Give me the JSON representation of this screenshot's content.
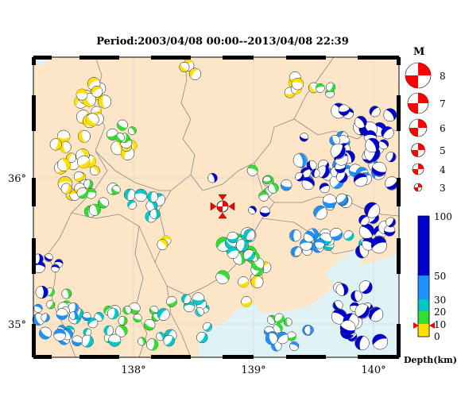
{
  "title": "Period:2003/04/08 00:00--2013/04/08 22:39",
  "axes": {
    "x_ticks": [
      "138°",
      "139°",
      "140°"
    ],
    "y_ticks": [
      "36°",
      "35°"
    ]
  },
  "magnitude_legend": {
    "header": "M",
    "items": [
      "8",
      "7",
      "6",
      "5",
      "4",
      "3"
    ]
  },
  "depth_scale": {
    "ticks": [
      "100",
      "50",
      "30",
      "20",
      "10",
      "0"
    ],
    "label": "Depth(km)",
    "colors": {
      "0-10": "#ffe000",
      "10-20": "#33dd33",
      "20-30": "#00c8c8",
      "30-50": "#1e90ff",
      "50-100": "#0000cd"
    }
  },
  "colors": {
    "land": "#fde6c8",
    "sea": "#dff3f6",
    "beachball_marker": "#ff0000"
  },
  "events": {
    "yellow_shallow_west": "shallow events (0-10 km) in west",
    "deep_east": "deep events (50-100 km) along eastern edge"
  }
}
